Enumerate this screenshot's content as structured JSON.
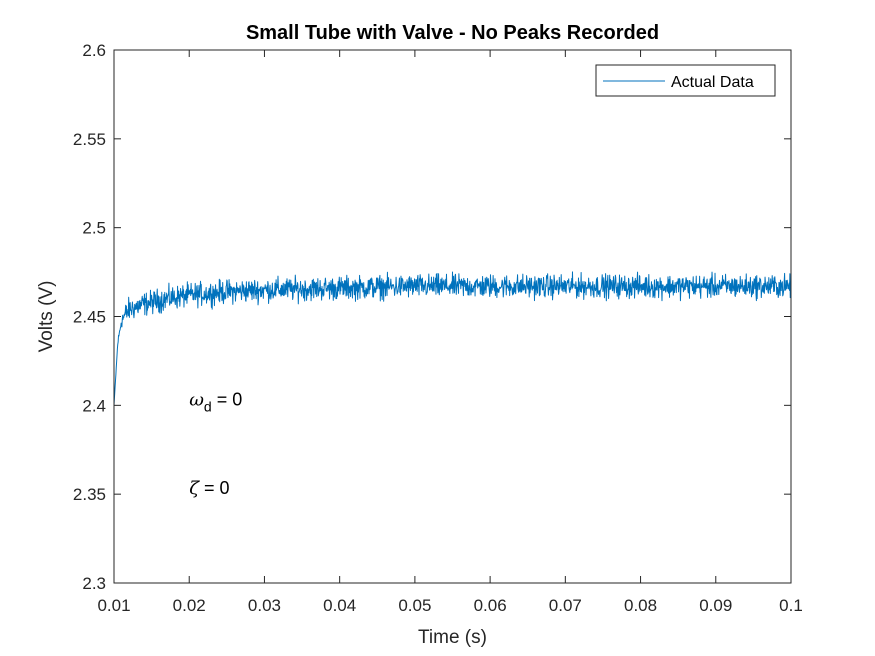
{
  "chart_data": {
    "type": "line",
    "title": "Small Tube with Valve - No Peaks Recorded",
    "xlabel": "Time (s)",
    "ylabel": "Volts (V)",
    "xlim": [
      0.01,
      0.1
    ],
    "ylim": [
      2.3,
      2.6
    ],
    "xticks": [
      0.01,
      0.02,
      0.03,
      0.04,
      0.05,
      0.06,
      0.07,
      0.08,
      0.09,
      0.1
    ],
    "xtick_labels": [
      "0.01",
      "0.02",
      "0.03",
      "0.04",
      "0.05",
      "0.06",
      "0.07",
      "0.08",
      "0.09",
      "0.1"
    ],
    "yticks": [
      2.3,
      2.35,
      2.4,
      2.45,
      2.5,
      2.55,
      2.6
    ],
    "ytick_labels": [
      "2.3",
      "2.35",
      "2.4",
      "2.45",
      "2.5",
      "2.55",
      "2.6"
    ],
    "grid": false,
    "legend_position": "top-right",
    "series": [
      {
        "name": "Actual Data",
        "color": "#0072BD",
        "description_points": {
          "x": [
            0.01,
            0.0105,
            0.011,
            0.012,
            0.014,
            0.017,
            0.02,
            0.025,
            0.03,
            0.04,
            0.05,
            0.06,
            0.07,
            0.08,
            0.09,
            0.1
          ],
          "y": [
            2.4,
            2.435,
            2.448,
            2.454,
            2.457,
            2.46,
            2.462,
            2.464,
            2.465,
            2.466,
            2.467,
            2.467,
            2.467,
            2.467,
            2.467,
            2.467
          ]
        },
        "noise_amplitude": 0.006
      }
    ],
    "annotations": [
      {
        "symbol": "ω",
        "subscript": "d",
        "text": " = 0",
        "x": 0.02,
        "y": 2.4
      },
      {
        "symbol": "ζ",
        "subscript": "",
        "text": " = 0",
        "x": 0.02,
        "y": 2.35
      }
    ]
  }
}
